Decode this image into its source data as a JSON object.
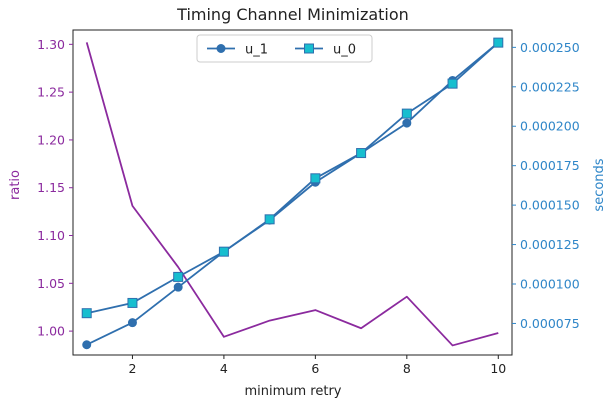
{
  "chart_data": {
    "type": "line",
    "title": "Timing Channel Minimization",
    "xlabel": "minimum retry",
    "ylabel_left": "ratio",
    "ylabel_right": "seconds",
    "x": [
      1,
      2,
      3,
      4,
      5,
      6,
      7,
      8,
      9,
      10
    ],
    "xlim": [
      0.7,
      10.3
    ],
    "xticks": [
      2,
      4,
      6,
      8,
      10
    ],
    "ylim_left": [
      0.975,
      1.315
    ],
    "yticks_left": [
      1.0,
      1.05,
      1.1,
      1.15,
      1.2,
      1.25,
      1.3
    ],
    "ytick_labels_left": [
      "1.00",
      "1.05",
      "1.10",
      "1.15",
      "1.20",
      "1.25",
      "1.30"
    ],
    "ylim_right": [
      5.5e-05,
      0.000261
    ],
    "yticks_right": [
      7.5e-05,
      0.0001,
      0.000125,
      0.00015,
      0.000175,
      0.0002,
      0.000225,
      0.00025
    ],
    "ytick_labels_right": [
      "0.000075",
      "0.000100",
      "0.000125",
      "0.000150",
      "0.000175",
      "0.000200",
      "0.000225",
      "0.000250"
    ],
    "legend_placement": "top-center",
    "ratio_series": {
      "values": [
        1.302,
        1.131,
        1.067,
        0.994,
        1.011,
        1.022,
        1.003,
        1.036,
        0.985,
        0.998
      ],
      "color": "#8b2a9e"
    },
    "series": [
      {
        "name": "u_1",
        "marker": "circle",
        "values": [
          6.15e-05,
          7.55e-05,
          9.8e-05,
          0.0001205,
          0.0001405,
          0.0001645,
          0.000183,
          0.000202,
          0.000229,
          0.000253
        ],
        "color": "#2f6fae"
      },
      {
        "name": "u_0",
        "marker": "square",
        "values": [
          8.15e-05,
          8.8e-05,
          0.0001045,
          0.0001205,
          0.000141,
          0.000167,
          0.000183,
          0.000208,
          0.000227,
          0.000253
        ],
        "color": "#17becf"
      }
    ],
    "colors": {
      "left_axis": "#8b2a9e",
      "right_axis": "#2f86c8",
      "line_blue": "#2f6fae",
      "marker_edge": "#2f6fae"
    }
  }
}
